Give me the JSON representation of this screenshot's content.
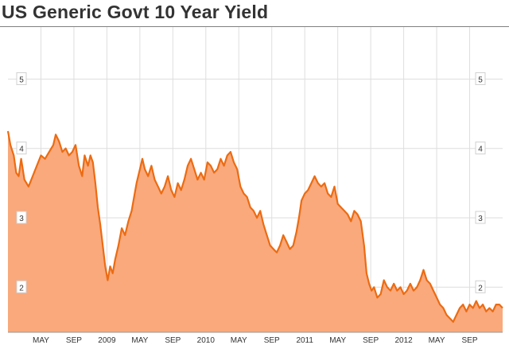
{
  "title": "US Generic Govt 10 Year Yield",
  "colors": {
    "line": "#ec6b12",
    "area": "#f9a97c",
    "grid": "#dedede",
    "axis_text": "#333333",
    "background": "#ffffff"
  },
  "chart_data": {
    "type": "area",
    "title": "US Generic Govt 10 Year Yield",
    "xlabel": "",
    "ylabel": "",
    "x_unit": "months since Jan 2008",
    "xlim": [
      0,
      60
    ],
    "ylim": [
      1.35,
      5.75
    ],
    "y_ticks": [
      2,
      3,
      4,
      5
    ],
    "y_tick_labels": [
      "2",
      "3",
      "4",
      "5"
    ],
    "y_axis_sides": [
      "left",
      "right"
    ],
    "x_ticks": [
      {
        "x": 4,
        "label": "MAY"
      },
      {
        "x": 8,
        "label": "SEP"
      },
      {
        "x": 12,
        "label": "2009"
      },
      {
        "x": 16,
        "label": "MAY"
      },
      {
        "x": 20,
        "label": "SEP"
      },
      {
        "x": 24,
        "label": "2010"
      },
      {
        "x": 28,
        "label": "MAY"
      },
      {
        "x": 32,
        "label": "SEP"
      },
      {
        "x": 36,
        "label": "2011"
      },
      {
        "x": 40,
        "label": "MAY"
      },
      {
        "x": 44,
        "label": "SEP"
      },
      {
        "x": 48,
        "label": "2012"
      },
      {
        "x": 52,
        "label": "MAY"
      },
      {
        "x": 56,
        "label": "SEP"
      }
    ],
    "grid": true,
    "legend": "none",
    "series": [
      {
        "values": [
          [
            0,
            4.25
          ],
          [
            0.3,
            4.05
          ],
          [
            0.7,
            3.9
          ],
          [
            1.0,
            3.65
          ],
          [
            1.3,
            3.6
          ],
          [
            1.6,
            3.85
          ],
          [
            2.0,
            3.55
          ],
          [
            2.5,
            3.45
          ],
          [
            3.0,
            3.6
          ],
          [
            3.5,
            3.75
          ],
          [
            4.0,
            3.9
          ],
          [
            4.5,
            3.85
          ],
          [
            5.0,
            3.95
          ],
          [
            5.5,
            4.05
          ],
          [
            5.8,
            4.2
          ],
          [
            6.2,
            4.1
          ],
          [
            6.6,
            3.95
          ],
          [
            7.0,
            4.0
          ],
          [
            7.4,
            3.9
          ],
          [
            7.8,
            3.95
          ],
          [
            8.2,
            4.05
          ],
          [
            8.6,
            3.75
          ],
          [
            9.0,
            3.6
          ],
          [
            9.3,
            3.9
          ],
          [
            9.7,
            3.75
          ],
          [
            10.0,
            3.9
          ],
          [
            10.3,
            3.8
          ],
          [
            10.6,
            3.5
          ],
          [
            10.9,
            3.15
          ],
          [
            11.2,
            2.9
          ],
          [
            11.5,
            2.6
          ],
          [
            11.8,
            2.3
          ],
          [
            12.1,
            2.1
          ],
          [
            12.4,
            2.3
          ],
          [
            12.7,
            2.2
          ],
          [
            13.0,
            2.4
          ],
          [
            13.4,
            2.6
          ],
          [
            13.8,
            2.85
          ],
          [
            14.2,
            2.75
          ],
          [
            14.6,
            2.95
          ],
          [
            15.0,
            3.1
          ],
          [
            15.3,
            3.3
          ],
          [
            15.6,
            3.5
          ],
          [
            16.0,
            3.7
          ],
          [
            16.3,
            3.85
          ],
          [
            16.6,
            3.7
          ],
          [
            17.0,
            3.6
          ],
          [
            17.4,
            3.75
          ],
          [
            17.8,
            3.55
          ],
          [
            18.2,
            3.45
          ],
          [
            18.6,
            3.35
          ],
          [
            19.0,
            3.45
          ],
          [
            19.4,
            3.6
          ],
          [
            19.8,
            3.4
          ],
          [
            20.2,
            3.3
          ],
          [
            20.6,
            3.5
          ],
          [
            21.0,
            3.4
          ],
          [
            21.4,
            3.55
          ],
          [
            21.8,
            3.75
          ],
          [
            22.2,
            3.85
          ],
          [
            22.6,
            3.7
          ],
          [
            23.0,
            3.55
          ],
          [
            23.4,
            3.65
          ],
          [
            23.8,
            3.55
          ],
          [
            24.2,
            3.8
          ],
          [
            24.6,
            3.75
          ],
          [
            25.0,
            3.65
          ],
          [
            25.4,
            3.7
          ],
          [
            25.8,
            3.85
          ],
          [
            26.2,
            3.75
          ],
          [
            26.6,
            3.9
          ],
          [
            27.0,
            3.95
          ],
          [
            27.4,
            3.8
          ],
          [
            27.8,
            3.7
          ],
          [
            28.2,
            3.45
          ],
          [
            28.6,
            3.35
          ],
          [
            29.0,
            3.3
          ],
          [
            29.4,
            3.15
          ],
          [
            29.8,
            3.1
          ],
          [
            30.2,
            3.0
          ],
          [
            30.6,
            3.1
          ],
          [
            31.0,
            2.9
          ],
          [
            31.4,
            2.75
          ],
          [
            31.8,
            2.6
          ],
          [
            32.2,
            2.55
          ],
          [
            32.6,
            2.5
          ],
          [
            33.0,
            2.6
          ],
          [
            33.4,
            2.75
          ],
          [
            33.8,
            2.65
          ],
          [
            34.2,
            2.55
          ],
          [
            34.6,
            2.6
          ],
          [
            35.0,
            2.8
          ],
          [
            35.3,
            3.0
          ],
          [
            35.6,
            3.25
          ],
          [
            36.0,
            3.35
          ],
          [
            36.4,
            3.4
          ],
          [
            36.8,
            3.5
          ],
          [
            37.2,
            3.6
          ],
          [
            37.6,
            3.5
          ],
          [
            38.0,
            3.45
          ],
          [
            38.4,
            3.5
          ],
          [
            38.8,
            3.35
          ],
          [
            39.2,
            3.3
          ],
          [
            39.6,
            3.45
          ],
          [
            40.0,
            3.2
          ],
          [
            40.4,
            3.15
          ],
          [
            40.8,
            3.1
          ],
          [
            41.2,
            3.05
          ],
          [
            41.6,
            2.95
          ],
          [
            42.0,
            3.1
          ],
          [
            42.4,
            3.05
          ],
          [
            42.8,
            2.95
          ],
          [
            43.2,
            2.6
          ],
          [
            43.5,
            2.2
          ],
          [
            43.8,
            2.05
          ],
          [
            44.1,
            1.95
          ],
          [
            44.4,
            2.0
          ],
          [
            44.8,
            1.85
          ],
          [
            45.2,
            1.9
          ],
          [
            45.6,
            2.1
          ],
          [
            46.0,
            2.0
          ],
          [
            46.4,
            1.95
          ],
          [
            46.8,
            2.05
          ],
          [
            47.2,
            1.95
          ],
          [
            47.6,
            2.0
          ],
          [
            48.0,
            1.9
          ],
          [
            48.4,
            1.95
          ],
          [
            48.8,
            2.05
          ],
          [
            49.2,
            1.95
          ],
          [
            49.6,
            2.0
          ],
          [
            50.0,
            2.1
          ],
          [
            50.4,
            2.25
          ],
          [
            50.8,
            2.1
          ],
          [
            51.2,
            2.05
          ],
          [
            51.6,
            1.95
          ],
          [
            52.0,
            1.85
          ],
          [
            52.4,
            1.75
          ],
          [
            52.8,
            1.7
          ],
          [
            53.2,
            1.6
          ],
          [
            53.6,
            1.55
          ],
          [
            54.0,
            1.5
          ],
          [
            54.4,
            1.6
          ],
          [
            54.8,
            1.7
          ],
          [
            55.2,
            1.75
          ],
          [
            55.6,
            1.65
          ],
          [
            56.0,
            1.75
          ],
          [
            56.4,
            1.7
          ],
          [
            56.8,
            1.8
          ],
          [
            57.2,
            1.7
          ],
          [
            57.6,
            1.75
          ],
          [
            58.0,
            1.65
          ],
          [
            58.4,
            1.7
          ],
          [
            58.8,
            1.65
          ],
          [
            59.2,
            1.75
          ],
          [
            59.6,
            1.75
          ],
          [
            60.0,
            1.7
          ]
        ]
      }
    ]
  }
}
